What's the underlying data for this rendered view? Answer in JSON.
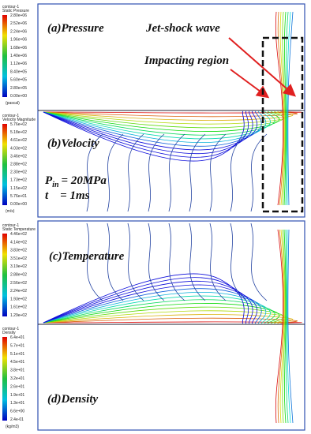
{
  "panels": [
    {
      "labels": [
        "(a)Pressure",
        "(b)Velocity"
      ]
    },
    {
      "labels": [
        "(c)Temperature",
        "(d)Density"
      ]
    }
  ],
  "annotations": {
    "jet_shock": "Jet-shock wave",
    "impacting": "Impacting region",
    "pressure": {
      "symbol": "P",
      "subscript": "in",
      "text": "= 20MPa"
    },
    "time": "t    = 1ms"
  },
  "colorbars": [
    {
      "title": [
        "contour-1",
        "Static Pressure"
      ],
      "labels": [
        "2.80e+06",
        "2.52e+06",
        "2.24e+06",
        "1.96e+06",
        "1.68e+06",
        "1.40e+06",
        "1.12e+06",
        "8.40e+05",
        "5.60e+05",
        "2.80e+05",
        "0.00e+00"
      ],
      "unit": "(pascal)"
    },
    {
      "title": [
        "contour-1",
        "Velocity Magnitude"
      ],
      "labels": [
        "5.76e+02",
        "5.18e+02",
        "4.61e+02",
        "4.03e+02",
        "3.46e+02",
        "2.88e+02",
        "2.30e+02",
        "1.73e+02",
        "1.15e+02",
        "5.76e+01",
        "0.00e+00"
      ],
      "unit": "(m/s)"
    },
    {
      "title": [
        "contour-1",
        "Static Temperature"
      ],
      "labels": [
        "4.46e+02",
        "4.14e+02",
        "3.83e+02",
        "3.51e+02",
        "3.19e+02",
        "2.88e+02",
        "2.56e+02",
        "2.24e+02",
        "1.93e+02",
        "1.61e+02",
        "1.29e+02"
      ],
      "unit": ""
    },
    {
      "title": [
        "contour-1",
        "Density"
      ],
      "labels": [
        "6.4e+01",
        "5.7e+01",
        "5.1e+01",
        "4.5e+01",
        "3.8e+01",
        "3.2e+01",
        "2.6e+01",
        "1.9e+01",
        "1.3e+01",
        "6.6e+00",
        "2.4e-01"
      ],
      "unit": "(kg/m3)"
    }
  ]
}
